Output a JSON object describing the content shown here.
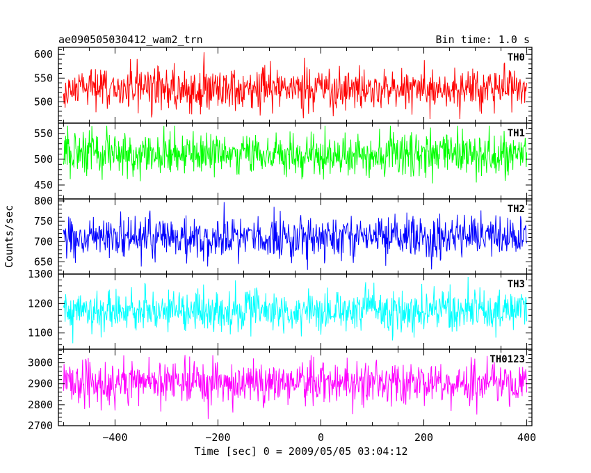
{
  "header": {
    "title": "ae090505030412_wam2_trn",
    "bin_time": "Bin time: 1.0 s"
  },
  "chart_data": {
    "type": "line",
    "xlabel": "Time [sec] 0 = 2009/05/05 03:04:12",
    "ylabel": "Counts/sec",
    "xlim": [
      -510,
      410
    ],
    "data_x_range": [
      -500,
      400
    ],
    "xticks": [
      -400,
      -200,
      0,
      200,
      400
    ],
    "xtick_labels": [
      "−400",
      "−200",
      "0",
      "200",
      "400"
    ],
    "grid": false,
    "panels": [
      {
        "name": "TH0",
        "color": "#ff0000",
        "ylim": [
          455,
          615
        ],
        "yticks": [
          500,
          550,
          600
        ],
        "ytick_labels": [
          "500",
          "550",
          "600"
        ],
        "mean": 527,
        "sd": 22,
        "min": 460,
        "max": 612
      },
      {
        "name": "TH1",
        "color": "#00ff00",
        "ylim": [
          423,
          570
        ],
        "yticks": [
          450,
          500,
          550
        ],
        "ytick_labels": [
          "450",
          "500",
          "550"
        ],
        "mean": 510,
        "sd": 21,
        "min": 440,
        "max": 565
      },
      {
        "name": "TH2",
        "color": "#0000ff",
        "ylim": [
          620,
          805
        ],
        "yticks": [
          650,
          700,
          750,
          800
        ],
        "ytick_labels": [
          "650",
          "700",
          "750",
          "800"
        ],
        "mean": 710,
        "sd": 26,
        "min": 630,
        "max": 800
      },
      {
        "name": "TH3",
        "color": "#00ffff",
        "ylim": [
          1045,
          1300
        ],
        "yticks": [
          1100,
          1200,
          1300
        ],
        "ytick_labels": [
          "1100",
          "1200",
          "1300"
        ],
        "mean": 1175,
        "sd": 35,
        "min": 1065,
        "max": 1300
      },
      {
        "name": "TH0123",
        "color": "#ff00ff",
        "ylim": [
          2700,
          3065
        ],
        "yticks": [
          2700,
          2800,
          2900,
          3000
        ],
        "ytick_labels": [
          "2700",
          "2800",
          "2900",
          "3000"
        ],
        "mean": 2905,
        "sd": 52,
        "min": 2710,
        "max": 3060
      }
    ]
  }
}
